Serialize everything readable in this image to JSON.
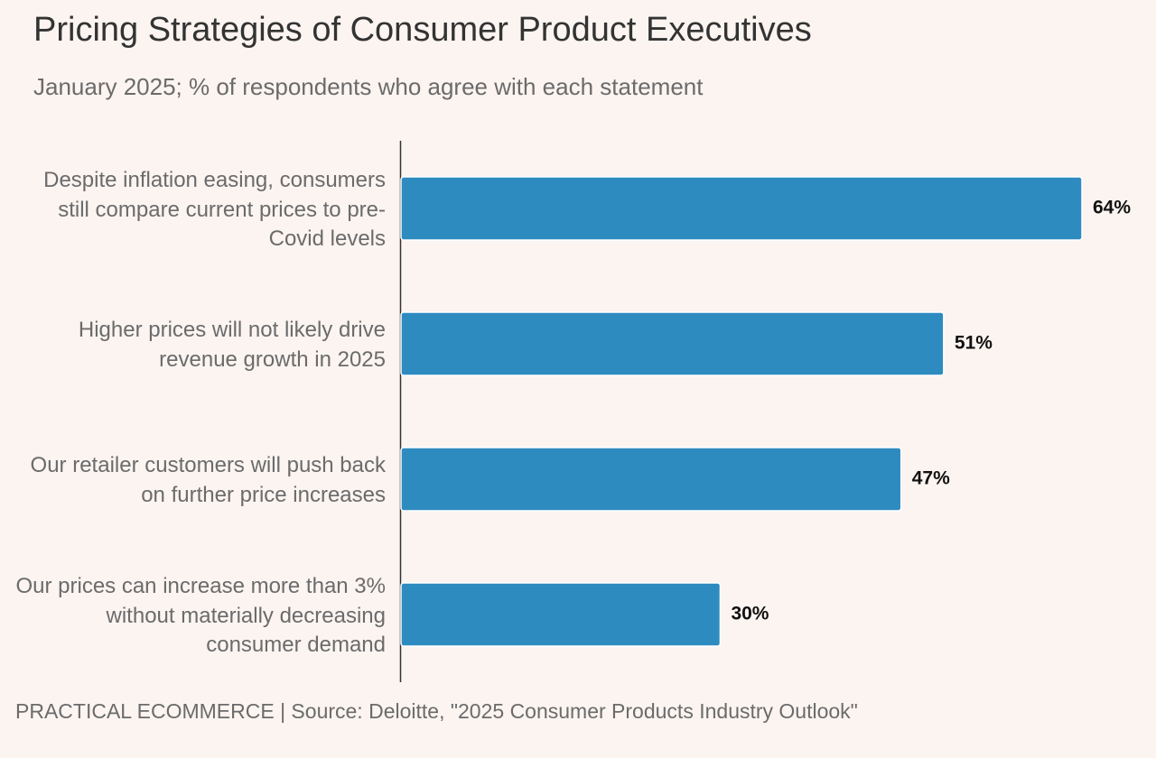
{
  "title": "Pricing Strategies of Consumer Product Executives",
  "subtitle": "January 2025; % of respondents who agree with each statement",
  "footer": "PRACTICAL ECOMMERCE | Source: Deloitte, \"2025 Consumer Products Industry Outlook\"",
  "colors": {
    "background": "#fbf4f1",
    "bar": "#2e8bc0",
    "axis": "#333333"
  },
  "chart_data": {
    "type": "bar",
    "orientation": "horizontal",
    "categories": [
      "Despite inflation easing, consumers still compare current prices to pre-Covid levels",
      "Higher prices will not likely drive revenue growth in 2025",
      "Our retailer customers will push back on further price increases",
      "Our prices can increase more than 3% without materially decreasing consumer demand"
    ],
    "values": [
      64,
      51,
      47,
      30
    ],
    "value_labels": [
      "64%",
      "51%",
      "47%",
      "30%"
    ],
    "unit": "%",
    "xlim": [
      0,
      64
    ],
    "grid": false,
    "legend": "none"
  }
}
